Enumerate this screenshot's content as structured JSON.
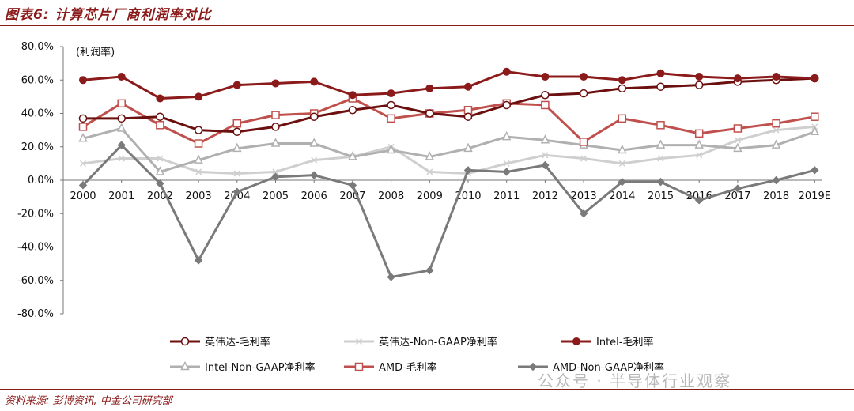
{
  "figure_title": "图表6: 计算芯片厂商利润率对比",
  "source_note": "资料来源: 彭博资讯, 中金公司研究部",
  "watermark": "公众号 · 半导体行业观察",
  "chart_data": {
    "type": "line",
    "ylabel": "(利润率)",
    "ylim": [
      -80,
      80
    ],
    "yticks": [
      "80.0%",
      "60.0%",
      "40.0%",
      "20.0%",
      "0.0%",
      "-20.0%",
      "-40.0%",
      "-60.0%",
      "-80.0%"
    ],
    "categories": [
      "2000",
      "2001",
      "2002",
      "2003",
      "2004",
      "2005",
      "2006",
      "2007",
      "2008",
      "2009",
      "2010",
      "2011",
      "2012",
      "2013",
      "2014",
      "2015",
      "2016",
      "2017",
      "2018",
      "2019E"
    ],
    "series": [
      {
        "name": "英伟达-毛利率",
        "color": "#6B0F0F",
        "marker": "circle-open",
        "values": [
          37,
          37,
          38,
          30,
          29,
          32,
          38,
          42,
          45,
          40,
          38,
          45,
          51,
          52,
          55,
          56,
          57,
          59,
          60,
          61
        ]
      },
      {
        "name": "英伟达-Non-GAAP净利率",
        "color": "#cfcfcf",
        "marker": "x",
        "values": [
          10,
          13,
          13,
          5,
          4,
          5,
          12,
          14,
          20,
          5,
          4,
          10,
          15,
          13,
          10,
          13,
          15,
          24,
          30,
          32
        ]
      },
      {
        "name": "Intel-毛利率",
        "color": "#8B1A1A",
        "marker": "circle-filled",
        "values": [
          60,
          62,
          49,
          50,
          57,
          58,
          59,
          51,
          52,
          55,
          56,
          65,
          62,
          62,
          60,
          64,
          62,
          61,
          62,
          61
        ]
      },
      {
        "name": "Intel-Non-GAAP净利率",
        "color": "#b0b0b0",
        "marker": "triangle",
        "values": [
          25,
          31,
          5,
          12,
          19,
          22,
          22,
          14,
          18,
          14,
          19,
          26,
          24,
          21,
          18,
          21,
          21,
          19,
          21,
          29
        ]
      },
      {
        "name": "AMD-毛利率",
        "color": "#c0504d",
        "marker": "square-open",
        "values": [
          32,
          46,
          33,
          22,
          34,
          39,
          40,
          49,
          37,
          40,
          42,
          46,
          45,
          23,
          37,
          33,
          28,
          31,
          34,
          38
        ]
      },
      {
        "name": "AMD-Non-GAAP净利率",
        "color": "#7a7a7a",
        "marker": "diamond",
        "values": [
          -3,
          21,
          -2,
          -48,
          -7,
          2,
          3,
          -3,
          -58,
          -54,
          6,
          5,
          9,
          -20,
          -1,
          -1,
          -12,
          -5,
          0,
          6
        ]
      }
    ],
    "legend": "bottom",
    "grid": false
  }
}
